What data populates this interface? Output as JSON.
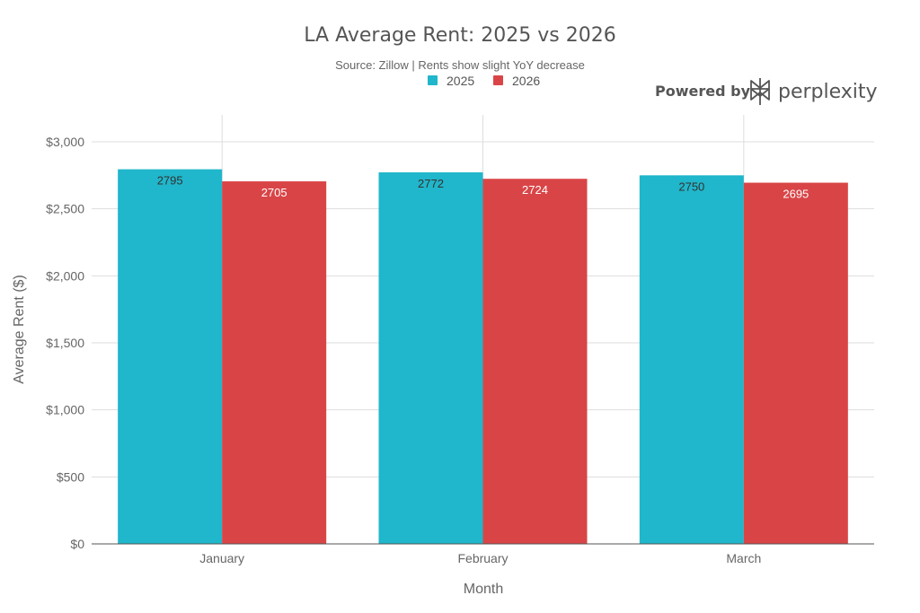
{
  "branding": {
    "prefix": "Powered by",
    "name": "perplexity",
    "logo_icon": "perplexity-logo-icon"
  },
  "colors": {
    "series_2025": "#20b6cb",
    "series_2026": "#d94547",
    "grid": "#dddddd",
    "axis": "#555555",
    "label_on_2025": "#333333",
    "label_on_2026": "#ffffff"
  },
  "chart_data": {
    "type": "bar",
    "title": "LA Average Rent: 2025 vs 2026",
    "subtitle": "Source: Zillow | Rents show slight YoY decrease",
    "xlabel": "Month",
    "ylabel": "Average Rent ($)",
    "categories": [
      "January",
      "February",
      "March"
    ],
    "series": [
      {
        "name": "2025",
        "values": [
          2795,
          2772,
          2750
        ]
      },
      {
        "name": "2026",
        "values": [
          2705,
          2724,
          2695
        ]
      }
    ],
    "ylim": [
      0,
      3000
    ],
    "yticks": [
      0,
      500,
      1000,
      1500,
      2000,
      2500,
      3000
    ],
    "ytick_labels": [
      "$0",
      "$500",
      "$1,000",
      "$1,500",
      "$2,000",
      "$2,500",
      "$3,000"
    ],
    "data_labels": true,
    "legend": "top-center",
    "grid": true
  }
}
